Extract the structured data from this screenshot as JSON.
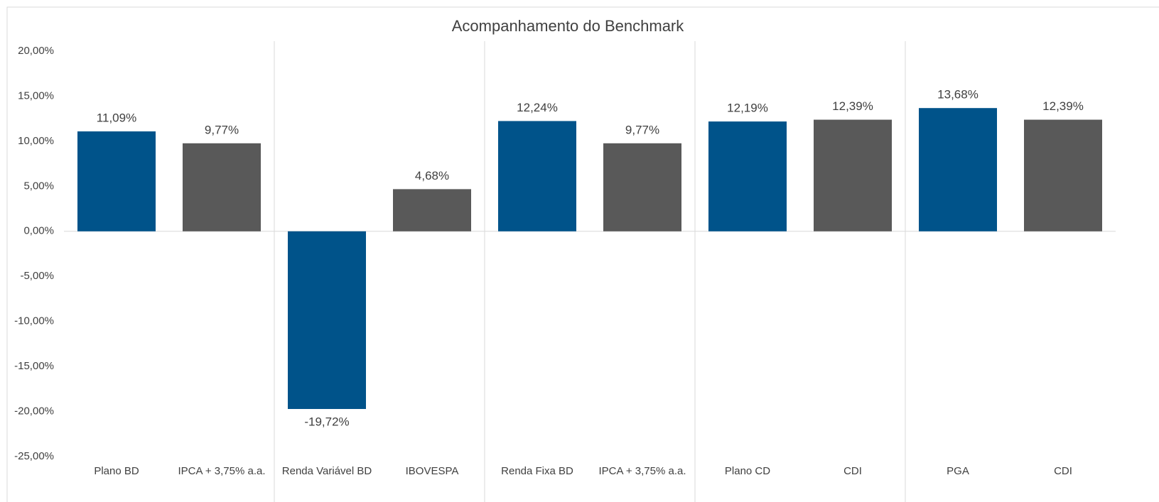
{
  "chart_data": {
    "type": "bar",
    "title": "Acompanhamento do Benchmark",
    "categories": [
      "Plano BD",
      "IPCA + 3,75% a.a.",
      "Renda Variável BD",
      "IBOVESPA",
      "Renda Fixa BD",
      "IPCA + 3,75% a.a.",
      "Plano CD",
      "CDI",
      "PGA",
      "CDI"
    ],
    "values": [
      11.09,
      9.77,
      -19.72,
      4.68,
      12.24,
      9.77,
      12.19,
      12.39,
      13.68,
      12.39
    ],
    "value_labels": [
      "11,09%",
      "9,77%",
      "-19,72%",
      "4,68%",
      "12,24%",
      "9,77%",
      "12,19%",
      "12,39%",
      "13,68%",
      "12,39%"
    ],
    "colors": [
      "#00538a",
      "#595959",
      "#00538a",
      "#595959",
      "#00538a",
      "#595959",
      "#00538a",
      "#595959",
      "#00538a",
      "#595959"
    ],
    "ylim": [
      -25,
      20
    ],
    "yticks": [
      {
        "value": -25,
        "label": "-25,00%"
      },
      {
        "value": -20,
        "label": "-20,00%"
      },
      {
        "value": -15,
        "label": "-15,00%"
      },
      {
        "value": -10,
        "label": "-10,00%"
      },
      {
        "value": -5,
        "label": "-5,00%"
      },
      {
        "value": 0,
        "label": "0,00%"
      },
      {
        "value": 5,
        "label": "5,00%"
      },
      {
        "value": 10,
        "label": "10,00%"
      },
      {
        "value": 15,
        "label": "15,00%"
      },
      {
        "value": 20,
        "label": "20,00%"
      }
    ]
  }
}
